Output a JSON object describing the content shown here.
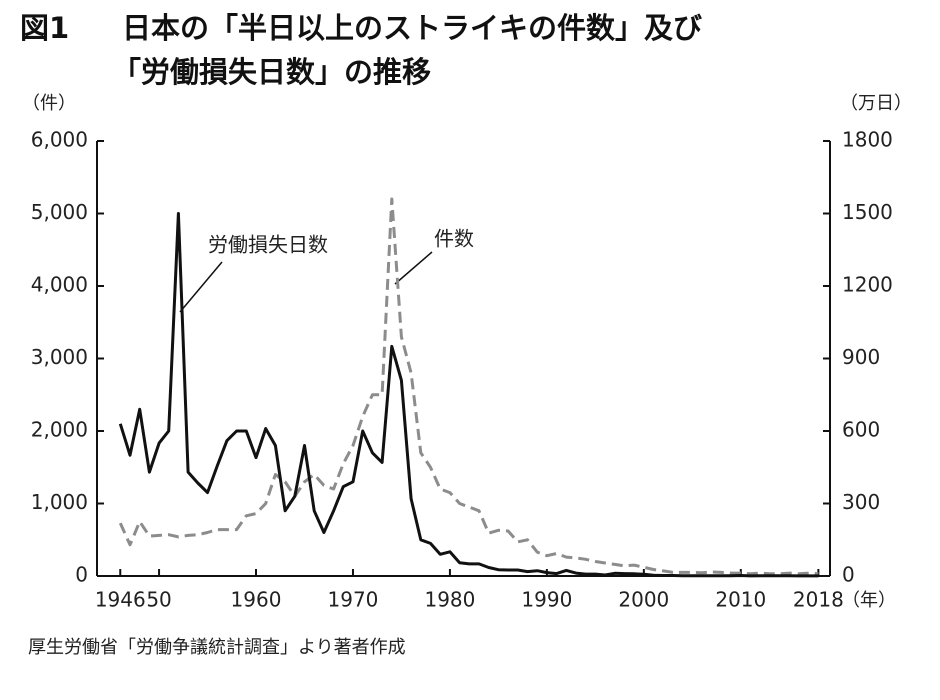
{
  "chart_data": {
    "type": "line",
    "figure_label": "図1",
    "title_lines": [
      "日本の「半日以上のストライキの件数」及び",
      "「労働損失日数」の推移"
    ],
    "y_unit": "（件）",
    "y2_unit": "（万日）",
    "x_unit": "（年）",
    "source": "厚生労働省「労働争議統計調査」より著者作成",
    "annotations": [
      {
        "text": "労働損失日数",
        "series": 1
      },
      {
        "text": "件数",
        "series": 0
      }
    ],
    "x": [
      1946,
      1947,
      1948,
      1949,
      1950,
      1951,
      1952,
      1953,
      1954,
      1955,
      1956,
      1957,
      1958,
      1959,
      1960,
      1961,
      1962,
      1963,
      1964,
      1965,
      1966,
      1967,
      1968,
      1969,
      1970,
      1971,
      1972,
      1973,
      1974,
      1975,
      1976,
      1977,
      1978,
      1979,
      1980,
      1981,
      1982,
      1983,
      1984,
      1985,
      1986,
      1987,
      1988,
      1989,
      1990,
      1991,
      1992,
      1993,
      1994,
      1995,
      1996,
      1997,
      1998,
      1999,
      2000,
      2001,
      2002,
      2003,
      2004,
      2005,
      2006,
      2007,
      2008,
      2009,
      2010,
      2011,
      2012,
      2013,
      2014,
      2015,
      2016,
      2017,
      2018
    ],
    "xlim": [
      1943.6,
      2019.2
    ],
    "xticks": [
      1946,
      {
        "value": 1950,
        "label": "50"
      },
      1960,
      1970,
      1980,
      1990,
      2000,
      2010,
      2018
    ],
    "ylim": [
      0,
      6000
    ],
    "yticks": [
      0,
      {
        "value": 1000,
        "label": "1,000"
      },
      {
        "value": 2000,
        "label": "2,000"
      },
      {
        "value": 3000,
        "label": "3,000"
      },
      {
        "value": 4000,
        "label": "4,000"
      },
      {
        "value": 5000,
        "label": "5,000"
      },
      {
        "value": 6000,
        "label": "6,000"
      }
    ],
    "y2lim": [
      0,
      1800
    ],
    "y2ticks": [
      0,
      300,
      600,
      900,
      1200,
      1500,
      1800
    ],
    "series": [
      {
        "name": "件数",
        "color": "#8c8c8c",
        "dashed": true,
        "values": [
          730,
          430,
          750,
          550,
          560,
          570,
          540,
          560,
          570,
          600,
          640,
          640,
          640,
          830,
          860,
          1000,
          1400,
          1300,
          1100,
          1300,
          1400,
          1250,
          1200,
          1550,
          1800,
          2200,
          2500,
          2500,
          5200,
          3300,
          2800,
          1700,
          1500,
          1200,
          1150,
          1000,
          950,
          900,
          590,
          630,
          620,
          470,
          500,
          330,
          280,
          310,
          260,
          250,
          230,
          200,
          180,
          160,
          140,
          150,
          120,
          90,
          70,
          50,
          50,
          50,
          45,
          55,
          50,
          40,
          40,
          30,
          40,
          30,
          30,
          40,
          30,
          40,
          30
        ]
      },
      {
        "name": "労働損失日数",
        "color": "#111111",
        "dashed": false,
        "axis": "y2",
        "values": [
          630,
          500,
          690,
          430,
          550,
          600,
          1500,
          430,
          385,
          345,
          455,
          560,
          600,
          600,
          490,
          610,
          540,
          270,
          330,
          540,
          270,
          180,
          270,
          370,
          390,
          600,
          510,
          470,
          950,
          810,
          320,
          150,
          135,
          90,
          100,
          55,
          50,
          50,
          35,
          26,
          25,
          25,
          18,
          22,
          14,
          10,
          23,
          12,
          8,
          8,
          4,
          11,
          10,
          9,
          7,
          3,
          2,
          2,
          1,
          1,
          1,
          1,
          1,
          1,
          2,
          0.4,
          1,
          1,
          1,
          1,
          0.5,
          0.5,
          0.5
        ]
      }
    ]
  }
}
